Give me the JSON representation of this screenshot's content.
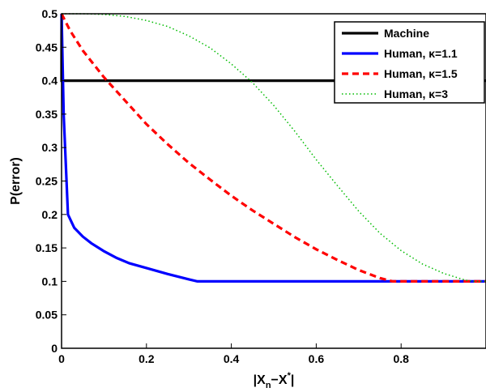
{
  "chart_data": {
    "type": "line",
    "title": "",
    "xlabel": {
      "base": "|X",
      "sub": "n",
      "mid": "−X",
      "sup": "*",
      "end": "|"
    },
    "ylabel": "P(error)",
    "xlim": [
      0,
      1
    ],
    "ylim": [
      0,
      0.5
    ],
    "xticks": [
      0,
      0.2,
      0.4,
      0.6,
      0.8
    ],
    "xtick_labels": [
      "0",
      "0.2",
      "0.4",
      "0.6",
      "0.8"
    ],
    "yticks": [
      0,
      0.05,
      0.1,
      0.15,
      0.2,
      0.25,
      0.3,
      0.35,
      0.4,
      0.45,
      0.5
    ],
    "ytick_labels": [
      "0",
      "0.05",
      "0.1",
      "0.15",
      "0.2",
      "0.25",
      "0.3",
      "0.35",
      "0.4",
      "0.45",
      "0.5"
    ],
    "grid": false,
    "legend_position": "top-right",
    "series": [
      {
        "name": "Machine",
        "color": "#000000",
        "style": "solid",
        "points": [
          [
            0,
            0.5
          ],
          [
            0.0,
            0.4
          ],
          [
            1,
            0.4
          ]
        ]
      },
      {
        "name": "Human, κ=1.1",
        "color": "#0000ff",
        "style": "solid",
        "points": [
          [
            0,
            0.5
          ],
          [
            0.005,
            0.35
          ],
          [
            0.015,
            0.2
          ],
          [
            0.03,
            0.18
          ],
          [
            0.05,
            0.167
          ],
          [
            0.07,
            0.157
          ],
          [
            0.1,
            0.145
          ],
          [
            0.13,
            0.135
          ],
          [
            0.16,
            0.127
          ],
          [
            0.2,
            0.12
          ],
          [
            0.25,
            0.111
          ],
          [
            0.3,
            0.103
          ],
          [
            0.32,
            0.1
          ],
          [
            1,
            0.1
          ]
        ]
      },
      {
        "name": "Human, κ=1.5",
        "color": "#ff0000",
        "style": "dashed",
        "points": [
          [
            0,
            0.5
          ],
          [
            0.02,
            0.475
          ],
          [
            0.05,
            0.445
          ],
          [
            0.1,
            0.405
          ],
          [
            0.15,
            0.37
          ],
          [
            0.2,
            0.335
          ],
          [
            0.25,
            0.305
          ],
          [
            0.3,
            0.277
          ],
          [
            0.35,
            0.252
          ],
          [
            0.4,
            0.228
          ],
          [
            0.45,
            0.206
          ],
          [
            0.5,
            0.186
          ],
          [
            0.55,
            0.166
          ],
          [
            0.6,
            0.148
          ],
          [
            0.65,
            0.132
          ],
          [
            0.7,
            0.117
          ],
          [
            0.75,
            0.105
          ],
          [
            0.78,
            0.1
          ],
          [
            1,
            0.1
          ]
        ]
      },
      {
        "name": "Human, κ=3",
        "color": "#00bb00",
        "style": "dotted",
        "points": [
          [
            0,
            0.5
          ],
          [
            0.05,
            0.5
          ],
          [
            0.1,
            0.499
          ],
          [
            0.15,
            0.496
          ],
          [
            0.2,
            0.49
          ],
          [
            0.25,
            0.481
          ],
          [
            0.3,
            0.467
          ],
          [
            0.35,
            0.449
          ],
          [
            0.4,
            0.425
          ],
          [
            0.45,
            0.397
          ],
          [
            0.5,
            0.363
          ],
          [
            0.55,
            0.324
          ],
          [
            0.6,
            0.282
          ],
          [
            0.65,
            0.243
          ],
          [
            0.7,
            0.205
          ],
          [
            0.75,
            0.172
          ],
          [
            0.8,
            0.146
          ],
          [
            0.85,
            0.126
          ],
          [
            0.9,
            0.112
          ],
          [
            0.95,
            0.102
          ],
          [
            0.97,
            0.1
          ],
          [
            1,
            0.1
          ]
        ]
      }
    ]
  }
}
